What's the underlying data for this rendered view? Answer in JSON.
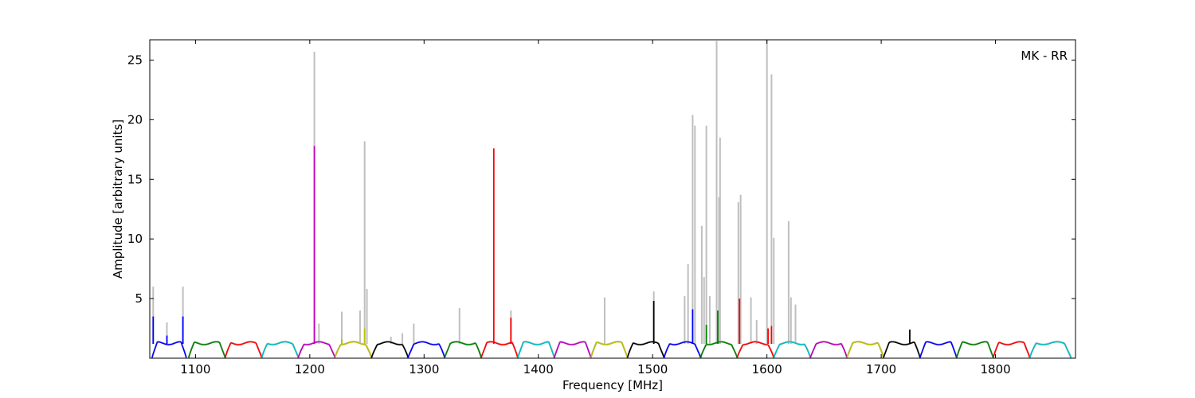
{
  "chart_data": {
    "type": "line",
    "title": "",
    "annotation": "MK - RR",
    "xlabel": "Frequency [MHz]",
    "ylabel": "Amplitude [arbitrary units]",
    "xlim": [
      1060,
      1870
    ],
    "ylim": [
      0,
      26.7
    ],
    "x_ticks": [
      1100,
      1200,
      1300,
      1400,
      1500,
      1600,
      1700,
      1800
    ],
    "y_ticks": [
      5,
      10,
      15,
      20,
      25
    ],
    "grid": false,
    "colors": {
      "background_series": "#bfbfbf",
      "blue": "#0000ff",
      "green": "#008000",
      "red": "#ff0000",
      "cyan": "#00bfbf",
      "magenta": "#bf00bf",
      "olive": "#bfbf00",
      "black": "#000000"
    },
    "baseline_level": 1.2,
    "bands": [
      {
        "start": 1062,
        "end": 1092,
        "color": "blue"
      },
      {
        "start": 1094,
        "end": 1126,
        "color": "green"
      },
      {
        "start": 1126,
        "end": 1158,
        "color": "red"
      },
      {
        "start": 1158,
        "end": 1190,
        "color": "cyan"
      },
      {
        "start": 1190,
        "end": 1222,
        "color": "magenta"
      },
      {
        "start": 1222,
        "end": 1254,
        "color": "olive"
      },
      {
        "start": 1254,
        "end": 1286,
        "color": "black"
      },
      {
        "start": 1286,
        "end": 1318,
        "color": "blue"
      },
      {
        "start": 1318,
        "end": 1350,
        "color": "green"
      },
      {
        "start": 1350,
        "end": 1382,
        "color": "red"
      },
      {
        "start": 1382,
        "end": 1414,
        "color": "cyan"
      },
      {
        "start": 1414,
        "end": 1446,
        "color": "magenta"
      },
      {
        "start": 1446,
        "end": 1478,
        "color": "olive"
      },
      {
        "start": 1478,
        "end": 1510,
        "color": "black"
      },
      {
        "start": 1510,
        "end": 1542,
        "color": "blue"
      },
      {
        "start": 1542,
        "end": 1574,
        "color": "green"
      },
      {
        "start": 1574,
        "end": 1606,
        "color": "red"
      },
      {
        "start": 1606,
        "end": 1638,
        "color": "cyan"
      },
      {
        "start": 1638,
        "end": 1670,
        "color": "magenta"
      },
      {
        "start": 1670,
        "end": 1702,
        "color": "olive"
      },
      {
        "start": 1702,
        "end": 1734,
        "color": "black"
      },
      {
        "start": 1734,
        "end": 1766,
        "color": "blue"
      },
      {
        "start": 1766,
        "end": 1798,
        "color": "green"
      },
      {
        "start": 1798,
        "end": 1830,
        "color": "red"
      },
      {
        "start": 1830,
        "end": 1866,
        "color": "cyan"
      }
    ],
    "series": [
      {
        "color": "gray",
        "spikes": [
          {
            "x": 1063,
            "y": 6.0
          },
          {
            "x": 1075,
            "y": 3.0
          },
          {
            "x": 1089,
            "y": 6.0
          },
          {
            "x": 1204,
            "y": 25.7
          },
          {
            "x": 1208,
            "y": 2.9
          },
          {
            "x": 1228,
            "y": 3.9
          },
          {
            "x": 1244,
            "y": 4.0
          },
          {
            "x": 1248,
            "y": 18.2
          },
          {
            "x": 1250,
            "y": 5.8
          },
          {
            "x": 1271,
            "y": 1.8
          },
          {
            "x": 1281,
            "y": 2.1
          },
          {
            "x": 1291,
            "y": 2.9
          },
          {
            "x": 1331,
            "y": 4.2
          },
          {
            "x": 1376,
            "y": 4.0
          },
          {
            "x": 1458,
            "y": 5.1
          },
          {
            "x": 1501,
            "y": 5.6
          },
          {
            "x": 1528,
            "y": 5.2
          },
          {
            "x": 1531,
            "y": 7.9
          },
          {
            "x": 1535,
            "y": 20.4
          },
          {
            "x": 1537,
            "y": 19.5
          },
          {
            "x": 1543,
            "y": 11.1
          },
          {
            "x": 1545,
            "y": 6.8
          },
          {
            "x": 1547,
            "y": 19.5
          },
          {
            "x": 1550,
            "y": 5.2
          },
          {
            "x": 1556,
            "y": 26.6
          },
          {
            "x": 1558,
            "y": 13.5
          },
          {
            "x": 1559,
            "y": 18.5
          },
          {
            "x": 1575,
            "y": 13.1
          },
          {
            "x": 1577,
            "y": 13.7
          },
          {
            "x": 1586,
            "y": 5.1
          },
          {
            "x": 1591,
            "y": 3.2
          },
          {
            "x": 1600,
            "y": 26.7
          },
          {
            "x": 1604,
            "y": 23.8
          },
          {
            "x": 1606,
            "y": 10.1
          },
          {
            "x": 1619,
            "y": 11.5
          },
          {
            "x": 1621,
            "y": 5.1
          },
          {
            "x": 1625,
            "y": 4.5
          }
        ]
      },
      {
        "color": "colored",
        "spikes": [
          {
            "x": 1063,
            "y": 3.5
          },
          {
            "x": 1075,
            "y": 1.9
          },
          {
            "x": 1089,
            "y": 3.5
          },
          {
            "x": 1204,
            "y": 17.8
          },
          {
            "x": 1228,
            "y": 1.6
          },
          {
            "x": 1248,
            "y": 2.5
          },
          {
            "x": 1361,
            "y": 17.6
          },
          {
            "x": 1376,
            "y": 3.4
          },
          {
            "x": 1501,
            "y": 4.8
          },
          {
            "x": 1535,
            "y": 4.1
          },
          {
            "x": 1547,
            "y": 2.8
          },
          {
            "x": 1557,
            "y": 4.0
          },
          {
            "x": 1576,
            "y": 5.0
          },
          {
            "x": 1601,
            "y": 2.5
          },
          {
            "x": 1604,
            "y": 2.7
          },
          {
            "x": 1725,
            "y": 2.4
          }
        ]
      }
    ]
  }
}
